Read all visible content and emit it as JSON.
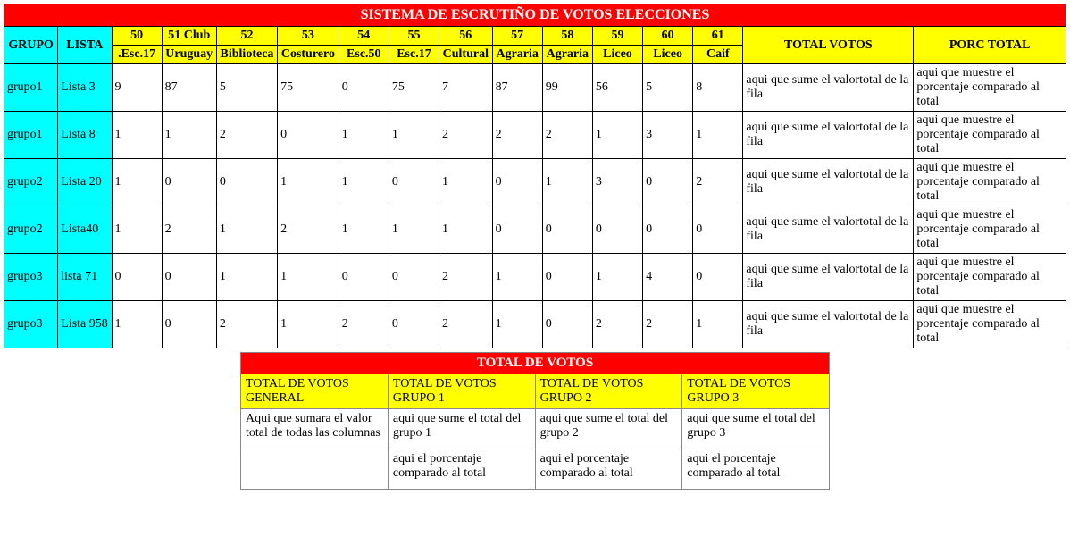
{
  "colors": {
    "title_bg": "#ff0000",
    "title_fg": "#ffffff",
    "head_yellow": "#ffff00",
    "head_cyan": "#00ffff",
    "border": "#000000",
    "summary_border": "#888888",
    "bg": "#ffffff",
    "text": "#000000"
  },
  "main": {
    "title": "SISTEMA DE ESCRUTIÑO DE VOTOS ELECCIONES",
    "headers": {
      "grupo": "GRUPO",
      "lista": "LISTA",
      "circ": [
        {
          "num": "50",
          "name": ".Esc.17"
        },
        {
          "num": "51 Club",
          "name": "Uruguay"
        },
        {
          "num": "52",
          "name": "Biblioteca"
        },
        {
          "num": "53",
          "name": "Costurero"
        },
        {
          "num": "54",
          "name": "Esc.50"
        },
        {
          "num": "55",
          "name": "Esc.17"
        },
        {
          "num": "56",
          "name": "Cultural"
        },
        {
          "num": "57",
          "name": "Agraria"
        },
        {
          "num": "58",
          "name": "Agraria"
        },
        {
          "num": "59",
          "name": "Liceo"
        },
        {
          "num": "60",
          "name": "Liceo"
        },
        {
          "num": "61",
          "name": "Caif"
        }
      ],
      "total_votos": "TOTAL VOTOS",
      "porc_total": "PORC TOTAL"
    },
    "row_total_text": "aqui que sume el valortotal de la fila",
    "row_porc_text": "aqui que muestre el porcentaje comparado al total",
    "rows": [
      {
        "grupo": "grupo1",
        "lista": "Lista 3",
        "v": [
          "9",
          "87",
          "5",
          "75",
          "0",
          "75",
          "7",
          "87",
          "99",
          "56",
          "5",
          "8"
        ]
      },
      {
        "grupo": "grupo1",
        "lista": "Lista 8",
        "v": [
          "1",
          "1",
          "2",
          "0",
          "1",
          "1",
          "2",
          "2",
          "2",
          "1",
          "3",
          "1"
        ]
      },
      {
        "grupo": "grupo2",
        "lista": "Lista 20",
        "v": [
          "1",
          "0",
          "0",
          "1",
          "1",
          "0",
          "1",
          "0",
          "1",
          "3",
          "0",
          "2"
        ]
      },
      {
        "grupo": "grupo2",
        "lista": "Lista40",
        "v": [
          "1",
          "2",
          "1",
          "2",
          "1",
          "1",
          "1",
          "0",
          "0",
          "0",
          "0",
          "0"
        ]
      },
      {
        "grupo": "grupo3",
        "lista": "lista 71",
        "v": [
          "0",
          "0",
          "1",
          "1",
          "0",
          "0",
          "2",
          "1",
          "0",
          "1",
          "4",
          "0"
        ]
      },
      {
        "grupo": "grupo3",
        "lista": "Lista 958",
        "v": [
          "1",
          "0",
          "2",
          "1",
          "2",
          "0",
          "2",
          "1",
          "0",
          "2",
          "2",
          "1"
        ]
      }
    ]
  },
  "summary": {
    "title": "TOTAL DE VOTOS",
    "cols": [
      "TOTAL DE VOTOS GENERAL",
      "TOTAL DE VOTOS GRUPO 1",
      "TOTAL DE VOTOS GRUPO 2",
      "TOTAL DE VOTOS GRUPO 3"
    ],
    "row1": [
      "Aqui que sumara el valor total de todas las columnas",
      "aqui que sume el total del grupo 1",
      "aqui que sume el total del grupo 2",
      "aqui que sume el total del grupo 3"
    ],
    "row2": [
      "",
      "aqui el porcentaje comparado al total",
      "aqui el porcentaje comparado al total",
      "aqui el porcentaje comparado al total"
    ]
  }
}
